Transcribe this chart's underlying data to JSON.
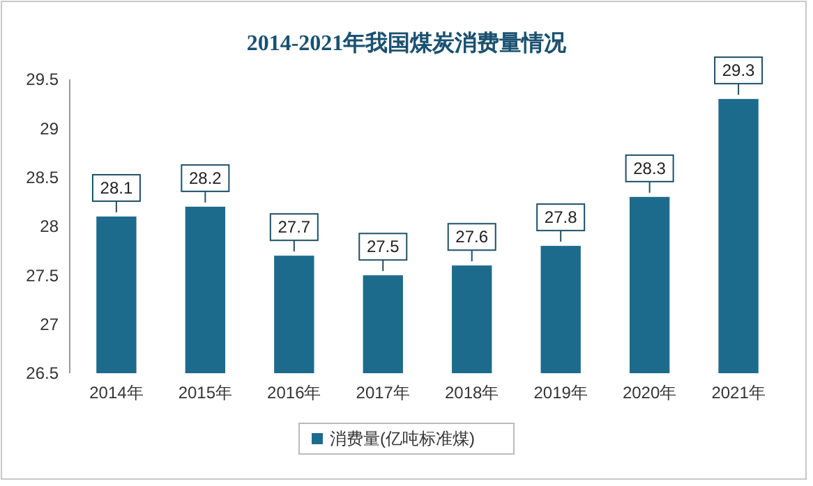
{
  "chart_data": {
    "type": "bar",
    "title": "2014-2021年我国煤炭消费量情况",
    "categories": [
      "2014年",
      "2015年",
      "2016年",
      "2017年",
      "2018年",
      "2019年",
      "2020年",
      "2021年"
    ],
    "series": [
      {
        "name": "消费量(亿吨标准煤)",
        "color": "#1d6b8c",
        "values": [
          28.1,
          28.2,
          27.7,
          27.5,
          27.6,
          27.8,
          28.3,
          29.3
        ]
      }
    ],
    "ylim": [
      26.5,
      29.5
    ],
    "yticks": [
      26.5,
      27,
      27.5,
      28,
      28.5,
      29,
      29.5
    ],
    "data_labels": true,
    "grid": false,
    "legend": "bottom"
  }
}
